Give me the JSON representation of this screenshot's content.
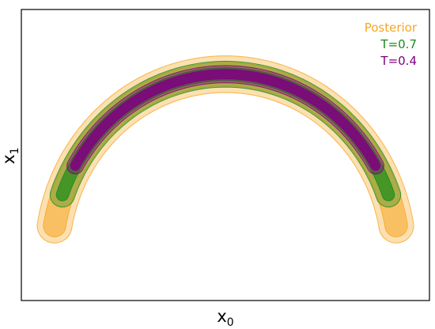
{
  "chart_data": {
    "type": "contour",
    "title": "",
    "xlabel": {
      "base": "x",
      "sub": "0"
    },
    "ylabel": {
      "base": "x",
      "sub": "1"
    },
    "xlim": [
      -1.0,
      1.0
    ],
    "ylim": [
      -0.25,
      1.1
    ],
    "grid": false,
    "ticks_visible": false,
    "legend": {
      "placement": "top-right",
      "frame": false
    },
    "series": [
      {
        "name": "Posterior",
        "color": "#f5a623",
        "levels": [
          {
            "half_width": 0.085,
            "fill_opacity": 0.35
          },
          {
            "half_width": 0.055,
            "fill_opacity": 0.55
          }
        ],
        "ring": {
          "center": [
            0.0,
            -0.05
          ],
          "radius": 0.85,
          "angle_start": 170,
          "angle_end": 10
        }
      },
      {
        "name": "T=0.7",
        "color": "#1a8a1a",
        "levels": [
          {
            "half_width": 0.06,
            "fill_opacity": 0.35
          },
          {
            "half_width": 0.03,
            "fill_opacity": 0.7
          }
        ],
        "ring": {
          "center": [
            0.0,
            -0.05
          ],
          "radius": 0.85,
          "angle_start": 160,
          "angle_end": 20
        }
      },
      {
        "name": "T=0.4",
        "color": "#800080",
        "levels": [
          {
            "half_width": 0.04,
            "fill_opacity": 0.4
          },
          {
            "half_width": 0.022,
            "fill_opacity": 0.85
          }
        ],
        "ring": {
          "center": [
            0.0,
            -0.05
          ],
          "radius": 0.85,
          "angle_start": 150,
          "angle_end": 30
        }
      }
    ]
  }
}
